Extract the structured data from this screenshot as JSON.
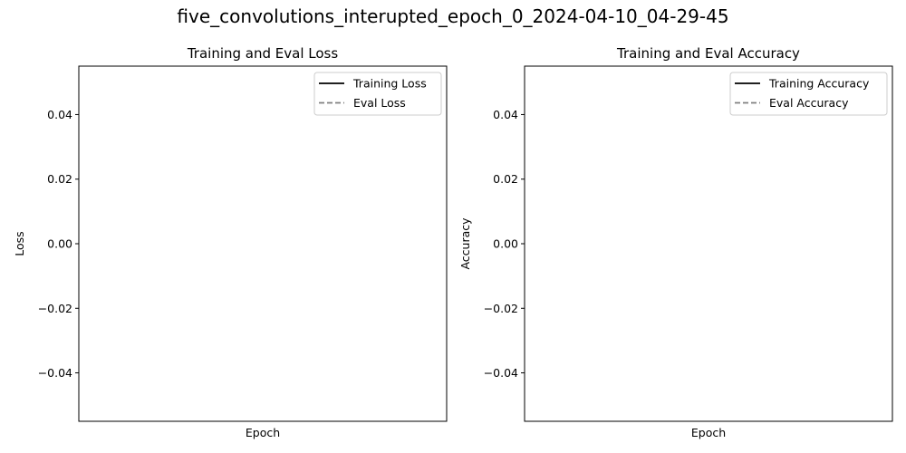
{
  "figure": {
    "title": "five_convolutions_interupted_epoch_0_2024-04-10_04-29-45"
  },
  "chart_data": [
    {
      "type": "line",
      "title": "Training and Eval Loss",
      "xlabel": "Epoch",
      "ylabel": "Loss",
      "ylim": [
        -0.055,
        0.055
      ],
      "yticks": [
        {
          "value": 0.04,
          "label": "0.04"
        },
        {
          "value": 0.02,
          "label": "0.02"
        },
        {
          "value": 0.0,
          "label": "0.00"
        },
        {
          "value": -0.02,
          "label": "−0.02"
        },
        {
          "value": -0.04,
          "label": "−0.04"
        }
      ],
      "xticks": [],
      "grid": false,
      "legend_position": "top-right",
      "series": [
        {
          "name": "Training Loss",
          "color": "#000000",
          "linestyle": "solid",
          "x": [],
          "y": []
        },
        {
          "name": "Eval Loss",
          "color": "#808080",
          "linestyle": "dashed",
          "x": [],
          "y": []
        }
      ]
    },
    {
      "type": "line",
      "title": "Training and Eval Accuracy",
      "xlabel": "Epoch",
      "ylabel": "Accuracy",
      "ylim": [
        -0.055,
        0.055
      ],
      "yticks": [
        {
          "value": 0.04,
          "label": "0.04"
        },
        {
          "value": 0.02,
          "label": "0.02"
        },
        {
          "value": 0.0,
          "label": "0.00"
        },
        {
          "value": -0.02,
          "label": "−0.02"
        },
        {
          "value": -0.04,
          "label": "−0.04"
        }
      ],
      "xticks": [],
      "grid": false,
      "legend_position": "top-right",
      "series": [
        {
          "name": "Training Accuracy",
          "color": "#000000",
          "linestyle": "solid",
          "x": [],
          "y": []
        },
        {
          "name": "Eval Accuracy",
          "color": "#808080",
          "linestyle": "dashed",
          "x": [],
          "y": []
        }
      ]
    }
  ]
}
